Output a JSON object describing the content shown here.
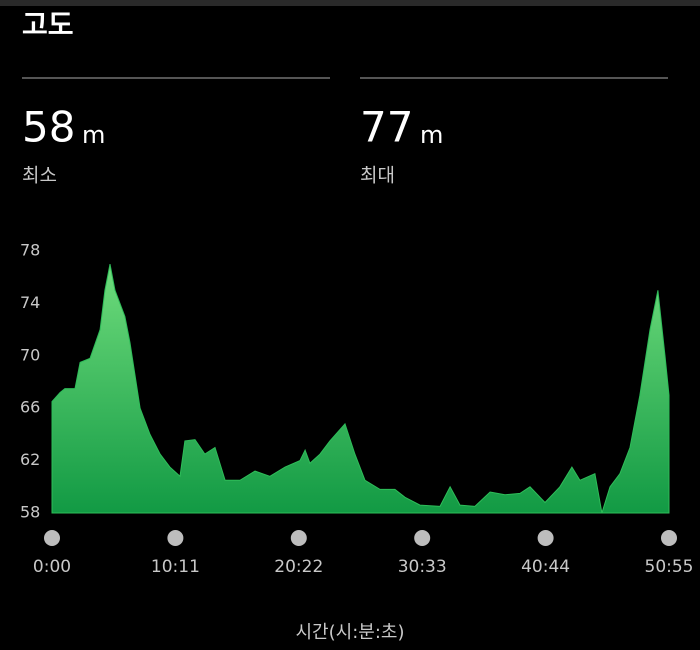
{
  "header": {
    "title": "고도"
  },
  "stats": [
    {
      "value": "58",
      "unit": "m",
      "label": "최소"
    },
    {
      "value": "77",
      "unit": "m",
      "label": "최대"
    }
  ],
  "chart_data": {
    "type": "area",
    "xlabel": "시간(시:분:초)",
    "x": [
      0,
      40,
      64,
      114,
      139,
      188,
      238,
      262,
      287,
      312,
      361,
      386,
      436,
      485,
      535,
      584,
      634,
      658,
      708,
      757,
      807,
      857,
      931,
      1005,
      1079,
      1154,
      1228,
      1253,
      1277,
      1327,
      1376,
      1451,
      1500,
      1550,
      1624,
      1698,
      1748,
      1822,
      1921,
      1971,
      2020,
      2094,
      2169,
      2243,
      2317,
      2367,
      2441,
      2515,
      2574,
      2614,
      2688,
      2723,
      2763,
      2812,
      2862,
      2911,
      2961,
      3000,
      3035,
      3055
    ],
    "series": [
      {
        "color": "#2ebd59",
        "values": [
          66.5,
          67.2,
          67.5,
          67.5,
          69.5,
          69.8,
          72,
          75,
          77,
          75,
          73,
          71,
          66,
          64,
          62.5,
          61.5,
          60.8,
          63.5,
          63.6,
          62.5,
          63,
          60.5,
          60.5,
          61.2,
          60.8,
          61.5,
          62,
          62.8,
          61.8,
          62.5,
          63.5,
          64.8,
          62.5,
          60.5,
          59.8,
          59.8,
          59.2,
          58.6,
          58.5,
          60,
          58.6,
          58.5,
          59.6,
          59.4,
          59.5,
          60,
          58.8,
          60,
          61.5,
          60.5,
          61,
          58,
          60,
          61,
          63,
          67,
          72,
          75,
          70,
          67
        ]
      }
    ],
    "xlim": [
      0,
      3055
    ],
    "xticks": [
      {
        "value": 0,
        "label": "0:00"
      },
      {
        "value": 611,
        "label": "10:11"
      },
      {
        "value": 1222,
        "label": "20:22"
      },
      {
        "value": 1833,
        "label": "30:33"
      },
      {
        "value": 2444,
        "label": "40:44"
      },
      {
        "value": 3055,
        "label": "50:55"
      }
    ],
    "ylim": [
      58,
      78
    ],
    "yticks": [
      58,
      62,
      66,
      70,
      74,
      78
    ]
  }
}
